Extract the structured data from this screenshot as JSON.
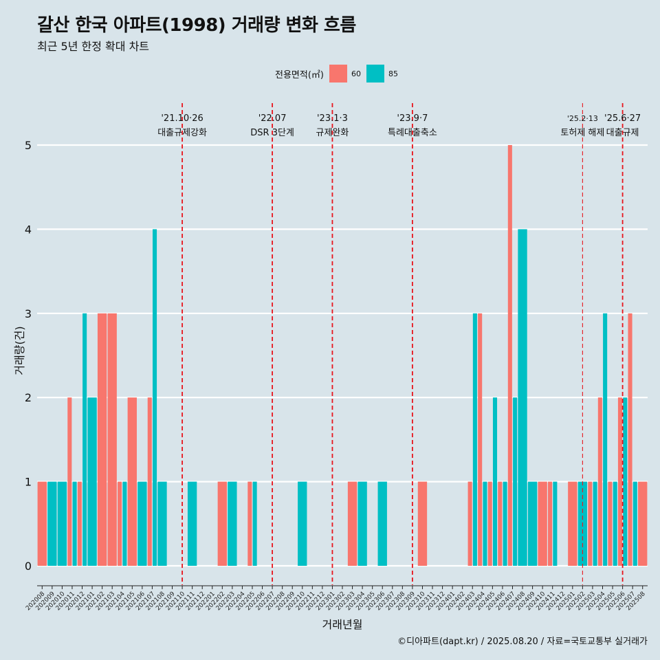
{
  "chart_data": {
    "type": "bar",
    "title": "갈산 한국 아파트(1998) 거래량 변화 흐름",
    "subtitle": "최근 5년 한정 확대 차트",
    "xlabel": "거래년월",
    "ylabel": "거래량(건)",
    "ylim": [
      0,
      5
    ],
    "yticks": [
      "0",
      "1",
      "2",
      "3",
      "4",
      "5"
    ],
    "legend_title": "전용면적(㎡)",
    "legend_position": "top",
    "categories": [
      "202008",
      "202009",
      "202010",
      "202011",
      "202012",
      "202101",
      "202102",
      "202103",
      "202104",
      "202105",
      "202106",
      "202107",
      "202108",
      "202109",
      "202110",
      "202111",
      "202112",
      "202201",
      "202202",
      "202203",
      "202204",
      "202205",
      "202206",
      "202207",
      "202208",
      "202209",
      "202210",
      "202211",
      "202212",
      "202301",
      "202302",
      "202303",
      "202304",
      "202305",
      "202306",
      "202307",
      "202308",
      "202309",
      "202310",
      "202311",
      "202312",
      "202401",
      "202402",
      "202403",
      "202404",
      "202405",
      "202406",
      "202407",
      "202408",
      "202409",
      "202410",
      "202411",
      "202412",
      "202501",
      "202502",
      "202503",
      "202504",
      "202505",
      "202506",
      "202507",
      "202508"
    ],
    "series": [
      {
        "name": "60",
        "color": "#f8766d",
        "values": [
          1,
          0,
          0,
          2,
          1,
          0,
          3,
          3,
          1,
          2,
          0,
          2,
          0,
          0,
          0,
          0,
          0,
          0,
          1,
          0,
          0,
          1,
          0,
          0,
          0,
          0,
          0,
          0,
          0,
          0,
          0,
          1,
          0,
          0,
          0,
          0,
          0,
          0,
          1,
          0,
          0,
          0,
          0,
          1,
          3,
          1,
          1,
          5,
          0,
          0,
          1,
          1,
          0,
          1,
          0,
          1,
          2,
          1,
          2,
          3,
          1
        ]
      },
      {
        "name": "85",
        "color": "#00bfc4",
        "values": [
          0,
          1,
          1,
          1,
          3,
          2,
          0,
          0,
          1,
          0,
          1,
          4,
          1,
          0,
          0,
          1,
          0,
          0,
          0,
          1,
          0,
          1,
          0,
          0,
          0,
          0,
          1,
          0,
          0,
          0,
          0,
          0,
          1,
          0,
          1,
          0,
          0,
          0,
          0,
          0,
          0,
          0,
          0,
          3,
          1,
          2,
          1,
          2,
          4,
          1,
          0,
          1,
          0,
          0,
          1,
          1,
          3,
          1,
          2,
          1,
          0
        ]
      }
    ],
    "annotations": [
      {
        "date": "'21.10·26",
        "label": "대출규제강화",
        "index": 14,
        "style": "thick"
      },
      {
        "date": "'22.07",
        "label": "DSR 3단계",
        "index": 23,
        "style": "thick"
      },
      {
        "date": "'23.1·3",
        "label": "규제완화",
        "index": 29,
        "style": "thick"
      },
      {
        "date": "'23.9·7",
        "label": "특례대출축소",
        "index": 37,
        "style": "thick"
      },
      {
        "date": "'25.2·13",
        "label": "토허제 해제",
        "index": 54,
        "style": "thin"
      },
      {
        "date": "'25.6·27",
        "label": "대출규제",
        "index": 58,
        "style": "thick"
      }
    ],
    "caption": "©디아파트(dapt.kr) / 2025.08.20 / 자료=국토교통부 실거래가"
  }
}
